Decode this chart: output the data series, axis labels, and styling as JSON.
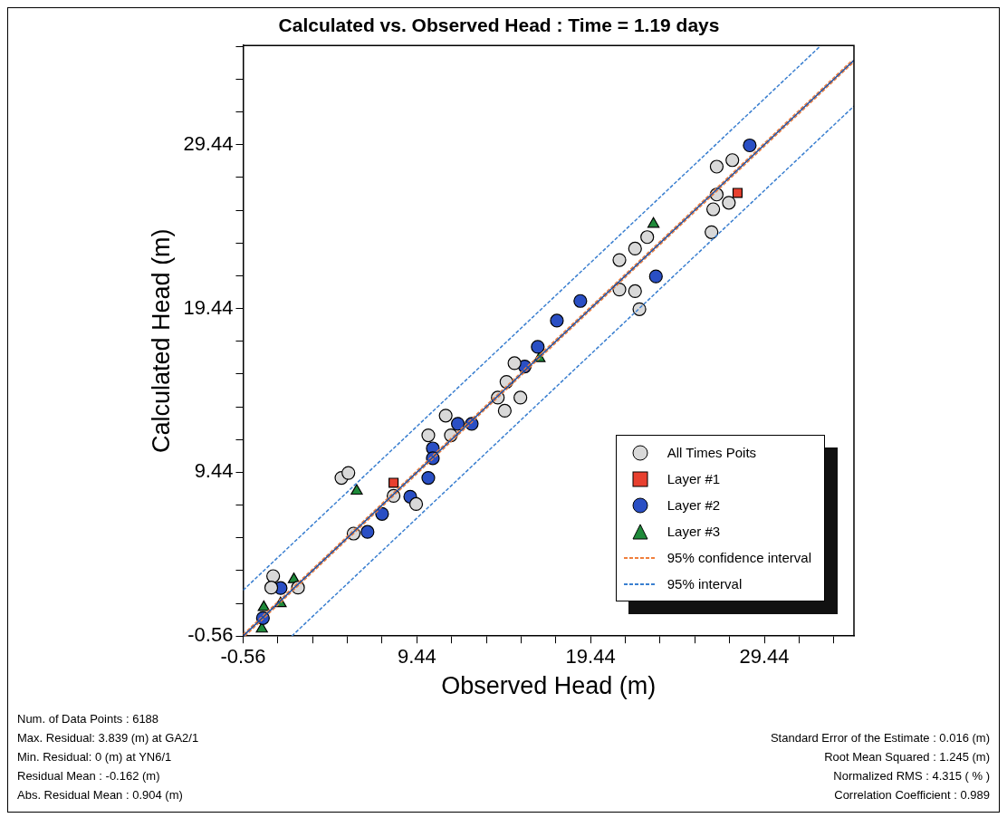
{
  "chart_data": {
    "type": "scatter",
    "title": "Calculated vs. Observed Head : Time = 1.19 days",
    "xlabel": "Observed Head (m)",
    "ylabel": "Calculated Head (m)",
    "xlim": [
      -0.56,
      34.6
    ],
    "ylim": [
      -0.56,
      35.5
    ],
    "xticks": [
      -0.56,
      {
        "value": 1.44,
        "label": null
      },
      {
        "value": 3.44,
        "label": null
      },
      {
        "value": 5.44,
        "label": null
      },
      {
        "value": 7.44,
        "label": null
      },
      9.44,
      {
        "value": 11.44,
        "label": null
      },
      {
        "value": 13.44,
        "label": null
      },
      {
        "value": 15.44,
        "label": null
      },
      {
        "value": 17.44,
        "label": null
      },
      19.44,
      {
        "value": 21.44,
        "label": null
      },
      {
        "value": 23.44,
        "label": null
      },
      {
        "value": 25.44,
        "label": null
      },
      {
        "value": 27.44,
        "label": null
      },
      29.44,
      {
        "value": 31.44,
        "label": null
      },
      {
        "value": 33.44,
        "label": null
      }
    ],
    "yticks": [
      -0.56,
      {
        "value": 1.44,
        "label": null
      },
      {
        "value": 3.44,
        "label": null
      },
      {
        "value": 5.44,
        "label": null
      },
      {
        "value": 7.44,
        "label": null
      },
      9.44,
      {
        "value": 11.44,
        "label": null
      },
      {
        "value": 13.44,
        "label": null
      },
      {
        "value": 15.44,
        "label": null
      },
      {
        "value": 17.44,
        "label": null
      },
      19.44,
      {
        "value": 21.44,
        "label": null
      },
      {
        "value": 23.44,
        "label": null
      },
      {
        "value": 25.44,
        "label": null
      },
      {
        "value": 27.44,
        "label": null
      },
      29.44,
      {
        "value": 31.44,
        "label": null
      },
      {
        "value": 33.44,
        "label": null
      },
      {
        "value": 35.44,
        "label": null
      }
    ],
    "legend": "bottom right",
    "series": [
      {
        "name": "All Times Poits",
        "type": "scatter",
        "marker": "circle",
        "color": "#d9d9d9",
        "x": [
          26.7,
          27.6,
          26.7,
          26.4,
          26.5,
          27.4,
          21.1,
          22.0,
          22.7,
          21.1,
          22.0,
          22.25,
          14.1,
          14.5,
          15.4,
          14.6,
          15.06,
          11.4,
          11.1,
          10.1,
          9.4,
          8.1,
          5.8,
          5.1,
          5.5,
          1.17,
          1.06,
          2.6
        ],
        "values": [
          28.1,
          28.5,
          26.4,
          24.1,
          25.5,
          25.9,
          22.4,
          23.1,
          23.8,
          20.6,
          20.5,
          19.4,
          14.0,
          13.2,
          14.0,
          14.96,
          16.1,
          11.7,
          12.9,
          11.7,
          7.5,
          8.0,
          5.7,
          9.1,
          9.4,
          3.1,
          2.4,
          2.4
        ]
      },
      {
        "name": "Layer #1",
        "type": "scatter",
        "marker": "square",
        "color": "#e8402f",
        "x": [
          8.1,
          27.9
        ],
        "values": [
          8.8,
          26.5
        ]
      },
      {
        "name": "Layer #2",
        "type": "scatter",
        "marker": "circle",
        "color": "#2a4fc4",
        "x": [
          28.6,
          23.2,
          18.85,
          17.5,
          16.4,
          15.65,
          11.8,
          12.6,
          10.36,
          10.36,
          10.1,
          9.06,
          7.44,
          6.6,
          1.6,
          0.58
        ],
        "values": [
          29.4,
          21.4,
          19.9,
          18.7,
          17.1,
          15.9,
          12.4,
          12.4,
          10.9,
          10.3,
          9.1,
          7.95,
          6.9,
          5.8,
          2.37,
          0.54
        ]
      },
      {
        "name": "Layer #3",
        "type": "scatter",
        "marker": "triangle",
        "color": "#1f8a3a",
        "x": [
          23.06,
          5.98,
          2.36,
          1.6,
          0.63,
          0.52,
          16.5
        ],
        "values": [
          24.6,
          8.3,
          2.9,
          1.43,
          1.2,
          -0.12,
          16.4
        ]
      },
      {
        "type": "line",
        "line_style": "solid",
        "color": "#1f4fa0",
        "x": [
          -0.56,
          34.6
        ],
        "values": [
          -0.56,
          34.6
        ]
      },
      {
        "name": "95% confidence interval",
        "type": "line",
        "line_style": "dashed",
        "color": "#f07f3c",
        "x": [
          -0.56,
          34.5
        ],
        "values": [
          -0.46,
          34.6
        ]
      },
      {
        "type": "line",
        "line_style": "dashed",
        "color": "#f07f3c",
        "x": [
          -0.46,
          34.6
        ],
        "values": [
          -0.56,
          34.5
        ]
      },
      {
        "name": "95% interval",
        "type": "line",
        "line_style": "dashed",
        "color": "#3a7fd0",
        "x": [
          -0.56,
          32.7
        ],
        "values": [
          2.24,
          35.5
        ]
      },
      {
        "type": "line",
        "line_style": "dashed",
        "color": "#3a7fd0",
        "x": [
          2.24,
          34.6
        ],
        "values": [
          -0.56,
          31.8
        ]
      }
    ],
    "annotations": [
      "Num. of Data Points : 6188",
      "Max. Residual: 3.839 (m) at GA2/1",
      "Min. Residual: 0 (m) at YN6/1",
      "Residual Mean : -0.162 (m)",
      "Abs. Residual Mean : 0.904 (m)",
      "Standard Error of the Estimate : 0.016 (m)",
      "Root Mean Squared : 1.245 (m)",
      "Normalized RMS : 4.315 ( % )",
      "Correlation Coefficient : 0.989"
    ]
  }
}
